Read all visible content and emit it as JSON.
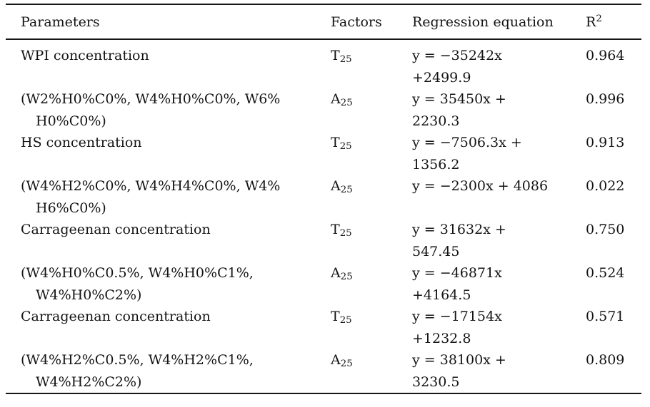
{
  "header": {
    "parameters": "Parameters",
    "factors": "Factors",
    "regression": "Regression equation",
    "r_base": "R",
    "r_sup": "2"
  },
  "rows": [
    {
      "param_l1": "WPI concentration",
      "param_l2": "",
      "factor_base": "T",
      "factor_sub": "25",
      "eq_l1": "y = −35242x",
      "eq_l2": "+2499.9",
      "r2": "0.964"
    },
    {
      "param_l1": "(W2%H0%C0%, W4%H0%C0%, W6%",
      "param_l2": "H0%C0%)",
      "factor_base": "A",
      "factor_sub": "25",
      "eq_l1": "y = 35450x +",
      "eq_l2": "2230.3",
      "r2": "0.996"
    },
    {
      "param_l1": "HS concentration",
      "param_l2": "",
      "factor_base": "T",
      "factor_sub": "25",
      "eq_l1": "y = −7506.3x +",
      "eq_l2": "1356.2",
      "r2": "0.913"
    },
    {
      "param_l1": "(W4%H2%C0%, W4%H4%C0%, W4%",
      "param_l2": "H6%C0%)",
      "factor_base": "A",
      "factor_sub": "25",
      "eq_l1": "y = −2300x + 4086",
      "eq_l2": "",
      "r2": "0.022"
    },
    {
      "param_l1": "Carrageenan concentration",
      "param_l2": "",
      "factor_base": "T",
      "factor_sub": "25",
      "eq_l1": "y = 31632x +",
      "eq_l2": "547.45",
      "r2": "0.750"
    },
    {
      "param_l1": "(W4%H0%C0.5%, W4%H0%C1%,",
      "param_l2": "W4%H0%C2%)",
      "factor_base": "A",
      "factor_sub": "25",
      "eq_l1": "y = −46871x",
      "eq_l2": "+4164.5",
      "r2": "0.524"
    },
    {
      "param_l1": "Carrageenan concentration",
      "param_l2": "",
      "factor_base": "T",
      "factor_sub": "25",
      "eq_l1": "y = −17154x",
      "eq_l2": "+1232.8",
      "r2": "0.571"
    },
    {
      "param_l1": "(W4%H2%C0.5%, W4%H2%C1%,",
      "param_l2": "W4%H2%C2%)",
      "factor_base": "A",
      "factor_sub": "25",
      "eq_l1": "y = 38100x +",
      "eq_l2": "3230.5",
      "r2": "0.809"
    }
  ],
  "chart_data": {
    "type": "table",
    "columns": [
      "Parameters",
      "Factors",
      "Regression equation",
      "R2"
    ],
    "rows": [
      [
        "WPI concentration",
        "T25",
        "y = −35242x +2499.9",
        "0.964"
      ],
      [
        "(W2%H0%C0%, W4%H0%C0%, W6%H0%C0%)",
        "A25",
        "y = 35450x + 2230.3",
        "0.996"
      ],
      [
        "HS concentration",
        "T25",
        "y = −7506.3x + 1356.2",
        "0.913"
      ],
      [
        "(W4%H2%C0%, W4%H4%C0%, W4%H6%C0%)",
        "A25",
        "y = −2300x + 4086",
        "0.022"
      ],
      [
        "Carrageenan concentration",
        "T25",
        "y = 31632x + 547.45",
        "0.750"
      ],
      [
        "(W4%H0%C0.5%, W4%H0%C1%, W4%H0%C2%)",
        "A25",
        "y = −46871x +4164.5",
        "0.524"
      ],
      [
        "Carrageenan concentration",
        "T25",
        "y = −17154x +1232.8",
        "0.571"
      ],
      [
        "(W4%H2%C0.5%, W4%H2%C1%, W4%H2%C2%)",
        "A25",
        "y = 38100x + 3230.5",
        "0.809"
      ]
    ]
  }
}
